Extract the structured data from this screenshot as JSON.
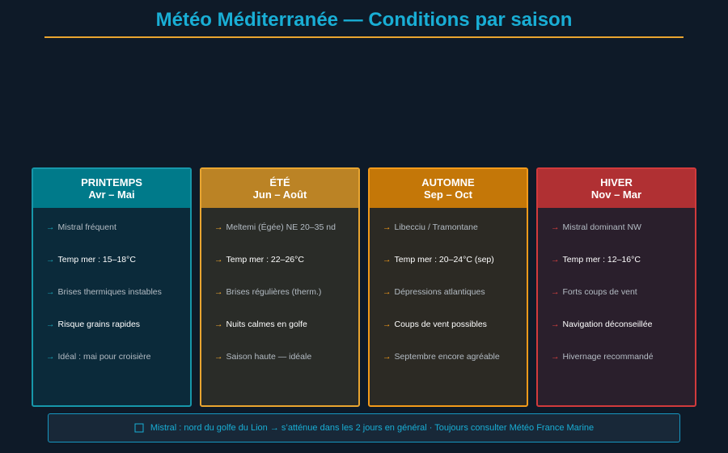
{
  "header": {
    "title": "Météo Méditerranée — Conditions par saison"
  },
  "cards": [
    {
      "name": "PRINTEMPS",
      "period": "Avr – Mai",
      "items": [
        "Mistral fréquent",
        "Temp mer : 15–18°C",
        "Brises thermiques instables",
        "Risque grains rapides",
        "Idéal : mai pour croisière"
      ]
    },
    {
      "name": "ÉTÉ",
      "period": "Jun – Août",
      "items": [
        "Meltemi (Égée) NE 20–35 nd",
        "Temp mer : 22–26°C",
        "Brises régulières (therm.)",
        "Nuits calmes en golfe",
        "Saison haute — idéale"
      ]
    },
    {
      "name": "AUTOMNE",
      "period": "Sep – Oct",
      "items": [
        "Libecciu / Tramontane",
        "Temp mer : 20–24°C (sep)",
        "Dépressions atlantiques",
        "Coups de vent possibles",
        "Septembre encore agréable"
      ]
    },
    {
      "name": "HIVER",
      "period": "Nov – Mar",
      "items": [
        "Mistral dominant NW",
        "Temp mer : 12–16°C",
        "Forts coups de vent",
        "Navigation déconseillée",
        "Hivernage recommandé"
      ]
    }
  ],
  "footer": {
    "note": "Mistral : nord du golfe du Lion → s’atténue dans les 2 jours en général · Toujours consulter Météo France Marine"
  }
}
